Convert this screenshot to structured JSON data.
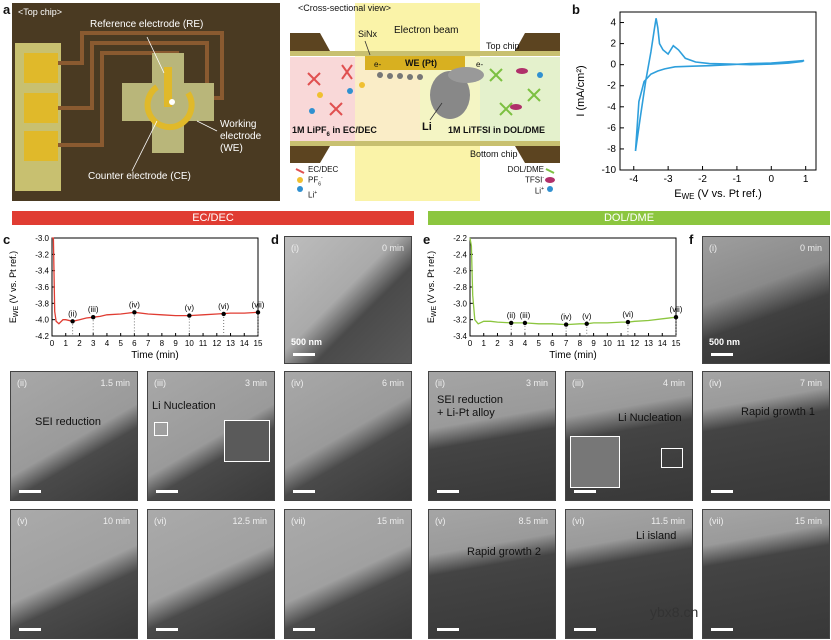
{
  "panel_labels": {
    "a": "a",
    "b": "b",
    "c": "c",
    "d": "d",
    "e": "e",
    "f": "f"
  },
  "top_chip": {
    "title": "<Top chip>",
    "re": "Reference electrode (RE)",
    "we1": "Working",
    "we2": "electrode",
    "we3": "(WE)",
    "ce": "Counter electrode (CE)"
  },
  "cross": {
    "title": "<Cross-sectional view>",
    "sinx": "SiNx",
    "ebeam": "Electron beam",
    "top_chip": "Top chip",
    "bottom_chip": "Bottom chip",
    "we": "WE (Pt)",
    "eminus": "e-",
    "li": "Li",
    "left_el_a": "1M LiPF",
    "left_el_sub": "6",
    "left_el_b": " in EC/DEC",
    "right_el": "1M LiTFSI in DOL/DME",
    "legend_left": [
      "EC/DEC",
      "PF",
      "Li"
    ],
    "legend_left_sub": [
      "",
      "6",
      "+"
    ],
    "legend_left_sup": [
      "",
      "-",
      ""
    ],
    "legend_right": [
      "DOL/DME",
      "TFSI",
      "Li"
    ],
    "legend_right_sup": [
      "",
      "-",
      "+"
    ]
  },
  "bars": {
    "left": "EC/DEC",
    "right": "DOL/DME",
    "left_color": "#e03c32",
    "right_color": "#8cc63f"
  },
  "chart_data": [
    {
      "type": "line",
      "panel": "b",
      "title": "",
      "xlabel": "E",
      "xlabel_sub": "WE",
      "xlabel_rest": " (V vs. Pt ref.)",
      "ylabel": "I (mA/cm²)",
      "xlim": [
        -4.4,
        1.3
      ],
      "ylim": [
        -10,
        5
      ],
      "xticks": [
        -4,
        -3,
        -2,
        -1,
        0,
        1
      ],
      "yticks": [
        4,
        2,
        0,
        -2,
        -4,
        -6,
        -8,
        -10
      ],
      "color": "#2e9fdc",
      "x": [
        -3.95,
        -3.8,
        -3.65,
        -3.5,
        -3.4,
        -3.35,
        -3.3,
        -3.25,
        -3.15,
        -3.0,
        -2.85,
        -2.7,
        -2.5,
        -2.2,
        -1.8,
        -1.2,
        -0.6,
        0.0,
        0.5,
        0.9,
        0.95,
        0.6,
        0.0,
        -0.6,
        -1.2,
        -1.8,
        -2.3,
        -2.8,
        -3.1,
        -3.3,
        -3.5,
        -3.7,
        -3.85,
        -3.95
      ],
      "y": [
        -8.2,
        -4.8,
        -1.5,
        1.2,
        3.4,
        4.4,
        3.5,
        2.0,
        1.4,
        1.0,
        1.8,
        1.4,
        0.6,
        0.25,
        0.1,
        0.05,
        0.0,
        0.05,
        0.15,
        0.3,
        0.4,
        0.3,
        0.15,
        0.1,
        0.0,
        -0.1,
        -0.15,
        -0.2,
        -0.4,
        -0.6,
        -0.9,
        -1.6,
        -3.5,
        -8.2
      ]
    },
    {
      "type": "line",
      "panel": "c",
      "xlabel": "Time (min)",
      "ylabel": "E",
      "ylabel_sub": "WE",
      "ylabel_rest": " (V vs. Pt ref.)",
      "xlim": [
        0,
        15
      ],
      "ylim": [
        -4.2,
        -3.0
      ],
      "xticks": [
        0,
        1,
        2,
        3,
        4,
        5,
        6,
        7,
        8,
        9,
        10,
        11,
        12,
        13,
        14,
        15
      ],
      "yticks": [
        -3.0,
        -3.2,
        -3.4,
        -3.6,
        -3.8,
        -4.0,
        -4.2
      ],
      "color": "#e03c32",
      "x": [
        0.0,
        0.1,
        0.2,
        0.3,
        0.5,
        0.8,
        1.0,
        1.5,
        2.0,
        2.5,
        3.0,
        3.5,
        4.0,
        5.0,
        6.0,
        7.0,
        8.0,
        9.0,
        10.0,
        11.0,
        12.0,
        13.0,
        14.0,
        15.0
      ],
      "y": [
        -3.0,
        -3.0,
        -3.9,
        -4.02,
        -4.05,
        -4.0,
        -4.0,
        -4.02,
        -4.0,
        -3.98,
        -3.97,
        -3.96,
        -3.94,
        -3.93,
        -3.91,
        -3.93,
        -3.94,
        -3.95,
        -3.95,
        -3.94,
        -3.93,
        -3.92,
        -3.92,
        -3.91
      ],
      "markers": [
        {
          "x": 1.5,
          "y": -4.02,
          "label": "(ii)"
        },
        {
          "x": 3.0,
          "y": -3.97,
          "label": "(iii)"
        },
        {
          "x": 6.0,
          "y": -3.91,
          "label": "(iv)"
        },
        {
          "x": 10.0,
          "y": -3.95,
          "label": "(v)"
        },
        {
          "x": 12.5,
          "y": -3.93,
          "label": "(vi)"
        },
        {
          "x": 15.0,
          "y": -3.91,
          "label": "(vii)"
        }
      ]
    },
    {
      "type": "line",
      "panel": "e",
      "xlabel": "Time (min)",
      "ylabel": "E",
      "ylabel_sub": "WE",
      "ylabel_rest": " (V vs. Pt ref.)",
      "xlim": [
        0,
        15
      ],
      "ylim": [
        -3.4,
        -2.2
      ],
      "xticks": [
        0,
        1,
        2,
        3,
        4,
        5,
        6,
        7,
        8,
        9,
        10,
        11,
        12,
        13,
        14,
        15
      ],
      "yticks": [
        -2.2,
        -2.4,
        -2.6,
        -2.8,
        -3.0,
        -3.2,
        -3.4
      ],
      "color": "#8cc63f",
      "x": [
        0.0,
        0.1,
        0.2,
        0.35,
        0.6,
        1.0,
        1.5,
        2.0,
        3.0,
        4.0,
        5.0,
        6.0,
        7.0,
        8.0,
        8.5,
        9.0,
        10.0,
        11.0,
        11.5,
        12.0,
        13.0,
        14.0,
        15.0
      ],
      "y": [
        -2.2,
        -2.3,
        -2.9,
        -3.2,
        -3.25,
        -3.22,
        -3.22,
        -3.23,
        -3.24,
        -3.24,
        -3.25,
        -3.25,
        -3.26,
        -3.25,
        -3.25,
        -3.24,
        -3.24,
        -3.23,
        -3.23,
        -3.22,
        -3.21,
        -3.19,
        -3.17
      ],
      "markers": [
        {
          "x": 3.0,
          "y": -3.24,
          "label": "(ii)"
        },
        {
          "x": 4.0,
          "y": -3.24,
          "label": "(iii)"
        },
        {
          "x": 7.0,
          "y": -3.26,
          "label": "(iv)"
        },
        {
          "x": 8.5,
          "y": -3.25,
          "label": "(v)"
        },
        {
          "x": 11.5,
          "y": -3.23,
          "label": "(vi)"
        },
        {
          "x": 15.0,
          "y": -3.17,
          "label": "(vii)"
        }
      ]
    }
  ],
  "tem_d": {
    "label": "(i)",
    "time": "0 min",
    "scale": "500 nm"
  },
  "tem_f": {
    "label": "(i)",
    "time": "0 min",
    "scale": "500 nm"
  },
  "tem_c": [
    {
      "label": "(ii)",
      "time": "1.5 min",
      "ann": "SEI reduction"
    },
    {
      "label": "(iii)",
      "time": "3 min",
      "ann": "Li Nucleation"
    },
    {
      "label": "(iv)",
      "time": "6 min",
      "ann": ""
    },
    {
      "label": "(v)",
      "time": "10 min",
      "ann": ""
    },
    {
      "label": "(vi)",
      "time": "12.5 min",
      "ann": ""
    },
    {
      "label": "(vii)",
      "time": "15 min",
      "ann": ""
    }
  ],
  "tem_e": [
    {
      "label": "(ii)",
      "time": "3 min",
      "ann": "SEI reduction",
      "ann2": "+ Li-Pt alloy"
    },
    {
      "label": "(iii)",
      "time": "4 min",
      "ann": "Li Nucleation",
      "ann2": ""
    },
    {
      "label": "(iv)",
      "time": "7 min",
      "ann": "Rapid growth 1",
      "ann2": ""
    },
    {
      "label": "(v)",
      "time": "8.5 min",
      "ann": "Rapid growth 2",
      "ann2": ""
    },
    {
      "label": "(vi)",
      "time": "11.5 min",
      "ann": "Li island",
      "ann2": ""
    },
    {
      "label": "(vii)",
      "time": "15 min",
      "ann": "",
      "ann2": ""
    }
  ],
  "watermark": "ybx8.cn"
}
